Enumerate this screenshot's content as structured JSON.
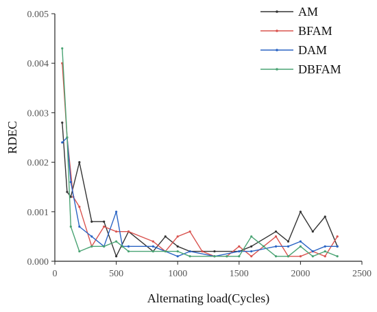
{
  "chart_data": {
    "type": "line",
    "title": "",
    "xlabel": "Alternating load(Cycles)",
    "ylabel": "RDEC",
    "xlim": [
      0,
      2500
    ],
    "ylim": [
      0,
      0.005
    ],
    "xticks": [
      0,
      500,
      1000,
      1500,
      2000,
      2500
    ],
    "xtick_labels": [
      "0",
      "500",
      "1000",
      "1500",
      "2000",
      "2500"
    ],
    "yticks": [
      0,
      0.001,
      0.002,
      0.003,
      0.004,
      0.005
    ],
    "ytick_labels": [
      "0.000",
      "0.001",
      "0.002",
      "0.003",
      "0.004",
      "0.005"
    ],
    "grid": false,
    "legend_position": "top-right",
    "series": [
      {
        "name": "AM",
        "color": "#333333",
        "x": [
          60,
          100,
          130,
          200,
          300,
          400,
          500,
          600,
          800,
          900,
          1000,
          1100,
          1200,
          1300,
          1500,
          1600,
          1800,
          1900,
          2000,
          2100,
          2200,
          2300
        ],
        "y": [
          0.0028,
          0.0014,
          0.0013,
          0.002,
          0.0008,
          0.0008,
          0.0001,
          0.0006,
          0.0002,
          0.0005,
          0.0003,
          0.0002,
          0.0002,
          0.0002,
          0.0002,
          0.0003,
          0.0006,
          0.0004,
          0.001,
          0.0006,
          0.0009,
          0.0003
        ]
      },
      {
        "name": "BFAM",
        "color": "#d9534f",
        "x": [
          60,
          100,
          150,
          200,
          300,
          400,
          500,
          600,
          800,
          900,
          1000,
          1100,
          1200,
          1300,
          1400,
          1500,
          1600,
          1700,
          1800,
          1900,
          2000,
          2100,
          2200,
          2300
        ],
        "y": [
          0.004,
          0.0025,
          0.0013,
          0.0011,
          0.0003,
          0.0007,
          0.0006,
          0.0006,
          0.0004,
          0.0002,
          0.0005,
          0.0006,
          0.0002,
          0.0001,
          0.0001,
          0.0003,
          0.0001,
          0.0003,
          0.0005,
          0.0001,
          0.0001,
          0.0002,
          0.0001,
          0.0005
        ]
      },
      {
        "name": "DAM",
        "color": "#2a64c4",
        "x": [
          60,
          100,
          130,
          200,
          300,
          400,
          500,
          550,
          600,
          800,
          1000,
          1100,
          1300,
          1500,
          1600,
          1800,
          1900,
          2000,
          2100,
          2200,
          2300
        ],
        "y": [
          0.0024,
          0.0025,
          0.0016,
          0.0007,
          0.0005,
          0.0003,
          0.001,
          0.0003,
          0.0003,
          0.0003,
          0.0001,
          0.0002,
          0.0001,
          0.0002,
          0.0002,
          0.0003,
          0.0003,
          0.0004,
          0.0002,
          0.0003,
          0.0003
        ]
      },
      {
        "name": "DBFAM",
        "color": "#49a373",
        "x": [
          60,
          100,
          130,
          200,
          300,
          400,
          500,
          550,
          600,
          800,
          900,
          1000,
          1100,
          1300,
          1400,
          1500,
          1600,
          1700,
          1800,
          1900,
          2000,
          2100,
          2200,
          2300
        ],
        "y": [
          0.0043,
          0.0025,
          0.0007,
          0.0002,
          0.0003,
          0.0003,
          0.0004,
          0.0003,
          0.0002,
          0.0002,
          0.0002,
          0.0002,
          0.0001,
          0.0001,
          0.0001,
          0.0001,
          0.0005,
          0.0003,
          0.0001,
          0.0001,
          0.0003,
          0.0001,
          0.0002,
          0.0001
        ]
      }
    ]
  }
}
